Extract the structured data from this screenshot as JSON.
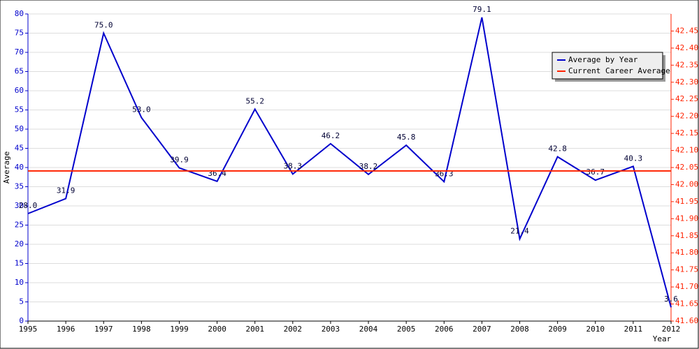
{
  "chart_data": {
    "type": "line",
    "x_label": "Year",
    "y_label": "Average",
    "categories": [
      "1995",
      "1996",
      "1997",
      "1998",
      "1999",
      "2000",
      "2001",
      "2002",
      "2003",
      "2004",
      "2005",
      "2006",
      "2007",
      "2008",
      "2009",
      "2010",
      "2011",
      "2012"
    ],
    "series": [
      {
        "name": "Average by Year",
        "color": "#0000cc",
        "values": [
          28.0,
          31.9,
          75.0,
          53.0,
          39.9,
          36.4,
          55.2,
          38.3,
          46.2,
          38.2,
          45.8,
          36.3,
          79.1,
          21.4,
          42.8,
          36.7,
          40.3,
          3.6
        ],
        "value_labels": [
          "28.0",
          "31.9",
          "75.0",
          "53.0",
          "39.9",
          "36.4",
          "55.2",
          "38.3",
          "46.2",
          "38.2",
          "45.8",
          "36.3",
          "79.1",
          "21.4",
          "42.8",
          "36.7",
          "40.3",
          "3.6"
        ]
      },
      {
        "name": "Current Career Average",
        "color": "#ff2200",
        "axis": "y2",
        "values": [
          42.04,
          42.04,
          42.04,
          42.04,
          42.04,
          42.04,
          42.04,
          42.04,
          42.04,
          42.04,
          42.04,
          42.04,
          42.04,
          42.04,
          42.04,
          42.04,
          42.04,
          42.04
        ]
      }
    ],
    "ylim": [
      0,
      80
    ],
    "yticks": [
      0,
      5,
      10,
      15,
      20,
      25,
      30,
      35,
      40,
      45,
      50,
      55,
      60,
      65,
      70,
      75,
      80
    ],
    "y2lim": [
      41.6,
      42.5
    ],
    "y2ticks": [
      {
        "value": 41.6,
        "label": "41.60"
      },
      41.65,
      {
        "value": 41.7,
        "label": "41.70"
      },
      41.75,
      {
        "value": 41.8,
        "label": "41.80"
      },
      41.85,
      {
        "value": 41.9,
        "label": "41.90"
      },
      41.95,
      {
        "value": 42.0,
        "label": "42.00"
      },
      42.05,
      {
        "value": 42.1,
        "label": "42.10"
      },
      42.15,
      {
        "value": 42.2,
        "label": "42.20"
      },
      42.25,
      {
        "value": 42.3,
        "label": "42.30"
      },
      42.35,
      {
        "value": 42.4,
        "label": "42.40"
      },
      42.45
    ],
    "grid": true
  }
}
